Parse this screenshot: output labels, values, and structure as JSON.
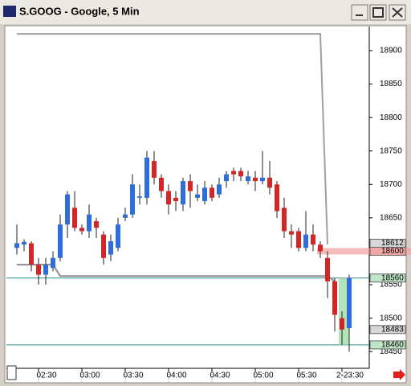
{
  "chart_data": {
    "type": "candlestick",
    "title": "S.GOOG - Google, 5 Min",
    "categories": [
      null,
      null,
      null,
      "02:30",
      null,
      null,
      null,
      null,
      null,
      "03:00",
      null,
      null,
      null,
      null,
      null,
      "03:30",
      null,
      null,
      null,
      null,
      null,
      "04:00",
      null,
      null,
      null,
      null,
      null,
      "04:30",
      null,
      null,
      null,
      null,
      null,
      "05:00",
      null,
      null,
      null,
      null,
      null,
      "05:30",
      null,
      null,
      null,
      null,
      null,
      "2-23:30",
      null
    ],
    "open": [
      18605,
      18610,
      18612,
      18580,
      18565,
      18575,
      18590,
      18640,
      18665,
      18635,
      18630,
      18645,
      18625,
      18595,
      18605,
      18650,
      18655,
      18680,
      18680,
      18735,
      18710,
      18690,
      18680,
      18670,
      18705,
      18680,
      18675,
      18695,
      18685,
      18705,
      18720,
      18720,
      18705,
      18710,
      18705,
      18710,
      18700,
      18665,
      18630,
      18630,
      18605,
      18625,
      18610,
      18590,
      18555,
      18500,
      18485
    ],
    "high": [
      18640,
      18618,
      18615,
      18590,
      18590,
      18600,
      18655,
      18690,
      18690,
      18640,
      18670,
      18650,
      18630,
      18625,
      18650,
      18665,
      18715,
      18700,
      18750,
      18750,
      18715,
      18700,
      18690,
      18710,
      18715,
      18700,
      18705,
      18700,
      18710,
      18720,
      18725,
      18725,
      18720,
      18720,
      18750,
      18735,
      18705,
      18680,
      18640,
      18635,
      18660,
      18640,
      18615,
      18600,
      18560,
      18510,
      18565
    ],
    "low": [
      18595,
      18600,
      18570,
      18550,
      18550,
      18570,
      18585,
      18620,
      18630,
      18625,
      18620,
      18620,
      18580,
      18585,
      18600,
      18645,
      18650,
      18670,
      18670,
      18700,
      18680,
      18655,
      18660,
      18660,
      18665,
      18675,
      18670,
      18675,
      18680,
      18695,
      18705,
      18705,
      18700,
      18690,
      18700,
      18685,
      18650,
      18620,
      18605,
      18600,
      18600,
      18600,
      18590,
      18530,
      18480,
      18460,
      18450
    ],
    "close": [
      18612,
      18614,
      18580,
      18565,
      18580,
      18590,
      18640,
      18685,
      18635,
      18630,
      18655,
      18635,
      18590,
      18615,
      18640,
      18655,
      18700,
      18682,
      18740,
      18710,
      18690,
      18670,
      18675,
      18705,
      18690,
      18685,
      18695,
      18680,
      18700,
      18715,
      18715,
      18712,
      18712,
      18705,
      18710,
      18695,
      18660,
      18630,
      18625,
      18605,
      18625,
      18610,
      18600,
      18555,
      18505,
      18483,
      18560
    ],
    "up_color": "#2f6ed8",
    "down_color": "#d42626",
    "lines": [
      {
        "color": "#a0a0a0",
        "values": [
          18925,
          18925,
          18925,
          18925,
          18925,
          18925,
          18925,
          18925,
          18925,
          18925,
          18925,
          18925,
          18925,
          18925,
          18925,
          18925,
          18925,
          18925,
          18925,
          18925,
          18925,
          18925,
          18925,
          18925,
          18925,
          18925,
          18925,
          18925,
          18925,
          18925,
          18925,
          18925,
          18925,
          18925,
          18925,
          18925,
          18925,
          18925,
          18925,
          18925,
          18925,
          18925,
          18925,
          18610,
          null,
          null,
          null
        ]
      },
      {
        "color": "#8c8c8c",
        "values": [
          18580,
          18580,
          18580,
          18580,
          18580,
          18580,
          18563,
          18563,
          18563,
          18563,
          18563,
          18563,
          18563,
          18563,
          18563,
          18563,
          18563,
          18563,
          18563,
          18563,
          18563,
          18563,
          18563,
          18563,
          18563,
          18563,
          18563,
          18563,
          18563,
          18563,
          18563,
          18563,
          18563,
          18563,
          18563,
          18563,
          18563,
          18563,
          18563,
          18563,
          18563,
          18563,
          18563,
          18563,
          18555,
          null,
          null
        ]
      }
    ],
    "price_markers": [
      {
        "value": 18612,
        "color": "#d8d8d8"
      },
      {
        "value": 18600,
        "color": "#f4a6a6",
        "line_color": "#f2a0a0"
      },
      {
        "value": 18560,
        "color": "#bfe6c6",
        "line_color": "#2a8c8c"
      },
      {
        "value": 18483,
        "color": "#d8d8d8"
      },
      {
        "value": 18460,
        "color": "#bfe6c6",
        "line_color": "#2a8c8c"
      }
    ],
    "ylim": [
      18425,
      18936
    ],
    "yticks": [
      18450,
      18500,
      18550,
      18600,
      18650,
      18700,
      18750,
      18800,
      18850,
      18900
    ]
  }
}
